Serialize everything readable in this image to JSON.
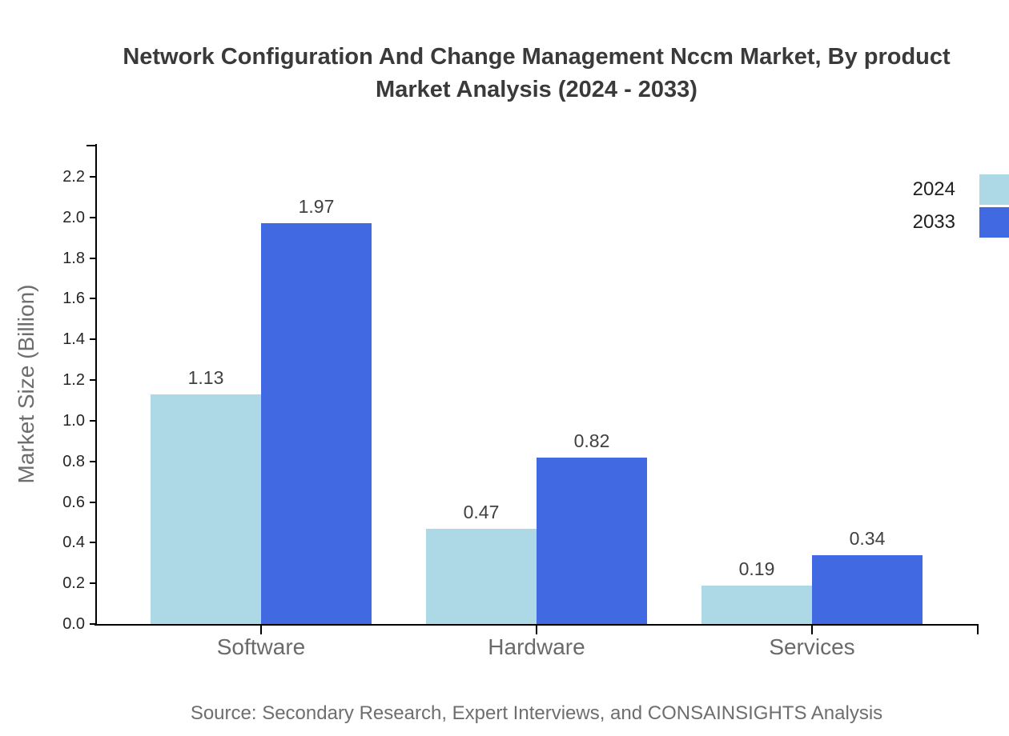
{
  "title": {
    "line1": "Network Configuration And Change Management Nccm Market, By product",
    "line2": "Market Analysis (2024 - 2033)"
  },
  "chart_data": {
    "type": "bar",
    "title": "Network Configuration And Change Management Nccm Market, By product Market Analysis (2024 - 2033)",
    "categories": [
      "Software",
      "Hardware",
      "Services"
    ],
    "series": [
      {
        "name": "2024",
        "color": "#add8e6",
        "values": [
          1.13,
          0.47,
          0.19
        ]
      },
      {
        "name": "2033",
        "color": "#4169e1",
        "values": [
          1.97,
          0.82,
          0.34
        ]
      }
    ],
    "xlabel": "",
    "ylabel": "Market Size (Billion)",
    "ylim": [
      0.0,
      2.36
    ],
    "yticks": [
      0.0,
      0.2,
      0.4,
      0.6,
      0.8,
      1.0,
      1.2,
      1.4,
      1.6,
      1.8,
      2.0,
      2.2
    ],
    "grid": false,
    "legend_position": "top-right",
    "bar_value_labels": true,
    "value_label_format": "0.00",
    "tick_label_format": "0.0"
  },
  "source": {
    "text": "Source: Secondary Research, Expert Interviews, and CONSAINSIGHTS Analysis"
  },
  "colors": {
    "series_2024": "#add8e6",
    "series_2033": "#4169e1",
    "axis_line": "#000000",
    "title_text": "#3a3a3a",
    "tick_text": "#262626",
    "category_text": "#6a6a6a",
    "muted_text": "#6e6e6e",
    "value_text": "#404040",
    "background": "#ffffff"
  }
}
